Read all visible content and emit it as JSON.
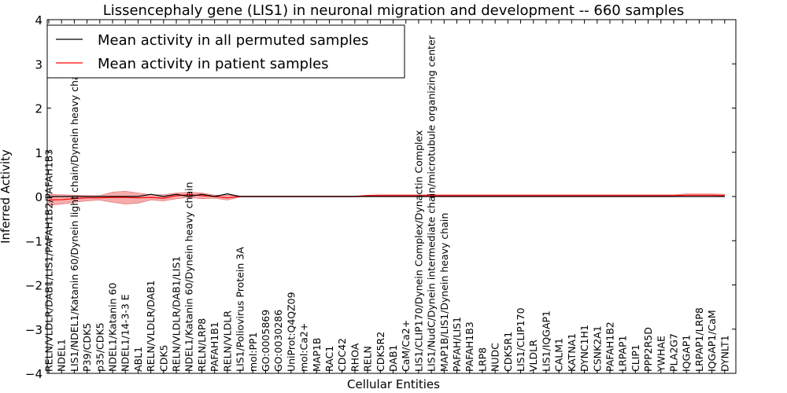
{
  "colors": {
    "background": "#ffffff",
    "axis": "#000000",
    "permuted_line": "#000000",
    "patient_line": "#ff0000",
    "patient_band": "#f08080",
    "permuted_band": "#b0b0d0"
  },
  "chart_data": {
    "type": "line",
    "title": "Lissencephaly gene (LIS1) in neuronal migration and development -- 660 samples",
    "xlabel": "Cellular Entities",
    "ylabel": "Inferred Activity",
    "ylim": [
      -4,
      4
    ],
    "yticks": [
      -4,
      -3,
      -2,
      -1,
      0,
      1,
      2,
      3,
      4
    ],
    "ytick_labels": [
      "−4",
      "−3",
      "−2",
      "−1",
      "0",
      "1",
      "2",
      "3",
      "4"
    ],
    "grid": false,
    "legend_position": "top-left",
    "categories": [
      "RELN/VLDLR/DAB1/LIS1/PAFAH1B2/PAFAH1B3",
      "NDEL1",
      "LIS1/NDEL1/Katanin 60/Dynein light chain/Dynein heavy chain",
      "P39/CDK5",
      "p35/CDK5",
      "NDEL1/Katanin 60",
      "NDEL1/14-3-3 E",
      "ABL1",
      "RELN/VLDLR/DAB1",
      "CDK5",
      "RELN/VLDLR/DAB1/LIS1",
      "NDEL1/Katanin 60/Dynein heavy chain",
      "RELN/LRP8",
      "PAFAH1B1",
      "RELN/VLDLR",
      "LIS1/Poliovirus Protein 3A",
      "mol:PP1",
      "GO:0005869",
      "GO:0030286",
      "UniProt:Q4QZ09",
      "mol:Ca2+",
      "MAP1B",
      "RAC1",
      "CDC42",
      "RHOA",
      "RELN",
      "CDK5R2",
      "DAB1",
      "CaM/Ca2+",
      "LIS1/CLIP170/Dynein Complex/Dynactin Complex",
      "LIS1/NudC/Dynein intermediate chain/microtubule organizing center",
      "MAP1B/LIS1/Dynein heavy chain",
      "PAFAH/LIS1",
      "PAFAH1B3",
      "LRP8",
      "NUDC",
      "CDK5R1",
      "LIS1/CLIP170",
      "VLDLR",
      "LIS1/IQGAP1",
      "CALM1",
      "KATNA1",
      "DYNC1H1",
      "CSNK2A1",
      "PAFAH1B2",
      "LRPAP1",
      "CLIP1",
      "PPP2R5D",
      "YWHAE",
      "PLA2G7",
      "IQGAP1",
      "LRPAP1/LRP8",
      "IQGAP1/CaM",
      "DYNLT1"
    ],
    "series": [
      {
        "name": "Mean activity in all permuted samples",
        "color": "#000000",
        "values": [
          0.0,
          0.0,
          0.0,
          0.0,
          0.0,
          0.0,
          0.0,
          0.0,
          0.05,
          0.0,
          0.05,
          0.0,
          0.05,
          0.0,
          0.06,
          0.0,
          0.0,
          0.0,
          0.0,
          0.0,
          0.0,
          0.0,
          0.0,
          0.0,
          0.0,
          0.0,
          0.0,
          0.0,
          0.0,
          0.0,
          0.0,
          0.0,
          0.0,
          0.0,
          0.0,
          0.0,
          0.0,
          0.0,
          0.0,
          0.0,
          0.0,
          0.0,
          0.0,
          0.0,
          0.0,
          0.0,
          0.0,
          0.0,
          0.0,
          0.0,
          0.0,
          0.0,
          0.0,
          0.0
        ]
      },
      {
        "name": "Mean activity in patient samples",
        "color": "#ff0000",
        "values": [
          -0.08,
          -0.07,
          -0.05,
          -0.03,
          -0.03,
          -0.02,
          -0.02,
          -0.03,
          -0.02,
          -0.04,
          0.02,
          0.04,
          0.02,
          0.0,
          -0.03,
          0.0,
          0.0,
          0.0,
          0.0,
          0.0,
          0.0,
          0.0,
          0.0,
          0.0,
          0.0,
          0.02,
          0.02,
          0.02,
          0.02,
          0.02,
          0.02,
          0.02,
          0.02,
          0.02,
          0.02,
          0.02,
          0.02,
          0.02,
          0.02,
          0.02,
          0.02,
          0.02,
          0.02,
          0.02,
          0.02,
          0.02,
          0.02,
          0.02,
          0.02,
          0.02,
          0.03,
          0.03,
          0.03,
          0.02
        ],
        "band_lower": [
          -0.2,
          -0.17,
          -0.13,
          -0.1,
          -0.08,
          -0.13,
          -0.17,
          -0.15,
          -0.08,
          -0.1,
          -0.05,
          -0.02,
          -0.05,
          -0.04,
          -0.08,
          -0.01,
          -0.01,
          -0.01,
          -0.01,
          -0.01,
          -0.01,
          -0.01,
          -0.01,
          -0.01,
          -0.01,
          0.0,
          0.0,
          0.0,
          0.0,
          0.0,
          0.0,
          0.0,
          0.0,
          0.0,
          0.0,
          0.0,
          0.0,
          0.0,
          0.0,
          0.0,
          0.0,
          0.0,
          0.0,
          0.0,
          0.0,
          0.0,
          0.0,
          0.0,
          0.0,
          0.0,
          0.0,
          0.0,
          0.0,
          0.0
        ],
        "band_upper": [
          0.05,
          0.04,
          0.03,
          0.02,
          0.02,
          0.1,
          0.12,
          0.08,
          0.04,
          0.04,
          0.08,
          0.1,
          0.08,
          0.03,
          0.03,
          0.01,
          0.01,
          0.01,
          0.01,
          0.01,
          0.01,
          0.01,
          0.01,
          0.01,
          0.01,
          0.03,
          0.04,
          0.04,
          0.04,
          0.04,
          0.04,
          0.04,
          0.04,
          0.04,
          0.04,
          0.04,
          0.04,
          0.04,
          0.04,
          0.04,
          0.04,
          0.04,
          0.04,
          0.04,
          0.04,
          0.04,
          0.04,
          0.04,
          0.04,
          0.04,
          0.06,
          0.06,
          0.06,
          0.05
        ]
      }
    ]
  }
}
